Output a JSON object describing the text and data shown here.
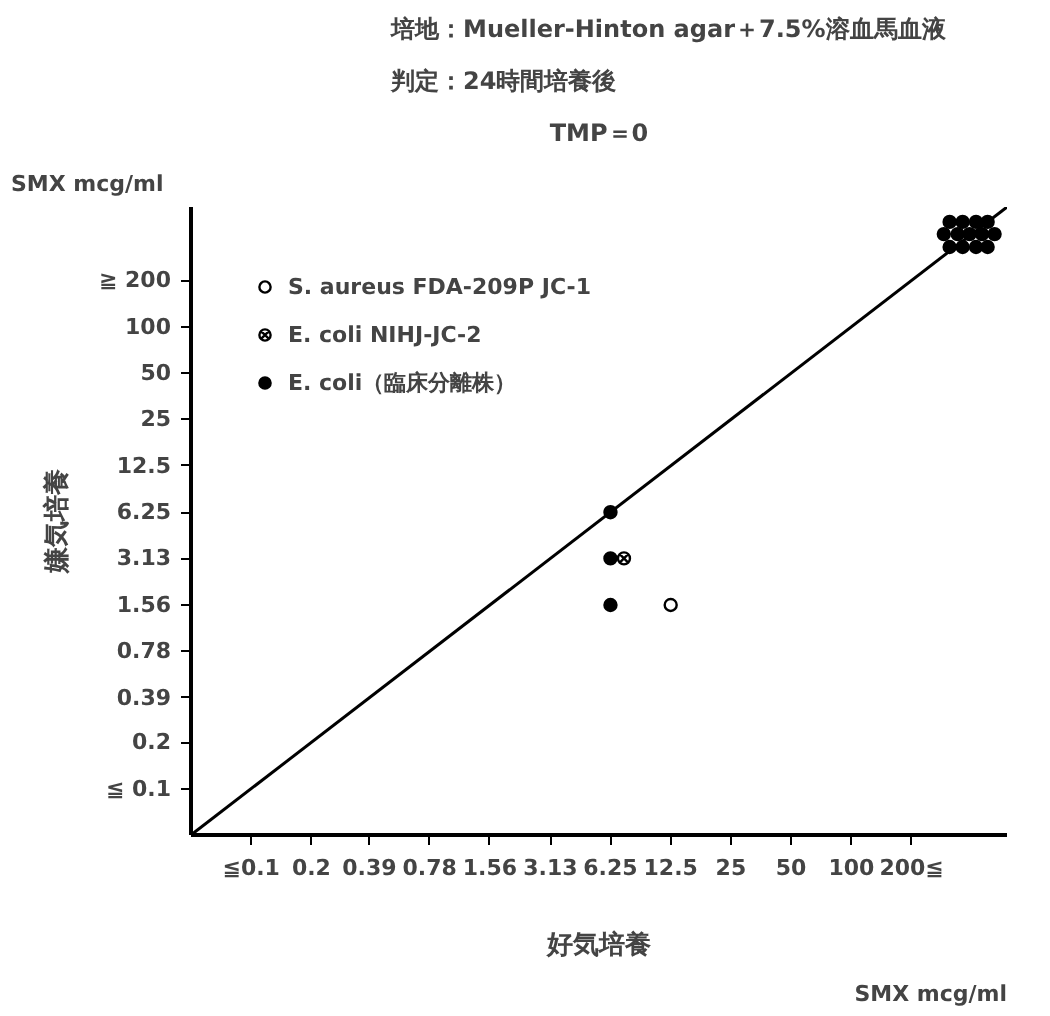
{
  "chart_data": {
    "type": "scatter",
    "title": "培地：Mueller-Hinton agar＋7.5%溶血馬血液",
    "subtitle": "判定：24時間培養後",
    "xlabel": "好気培養",
    "ylabel": "嫌気培養",
    "annotations": [
      "TMP＝0",
      "SMX mcg/ml",
      "SMX mcg/ml"
    ],
    "log": "xy",
    "grid": false,
    "legend": "top left",
    "xlim": [
      0.05,
      600
    ],
    "ylim": [
      0.05,
      600
    ],
    "xticks": [
      {
        "value": 0.1,
        "label": "≦0.1"
      },
      0.2,
      0.39,
      0.78,
      1.56,
      3.13,
      6.25,
      12.5,
      25,
      50,
      100,
      {
        "value": 200,
        "label": "200≦"
      }
    ],
    "yticks": [
      {
        "value": 0.1,
        "label": "≦ 0.1"
      },
      0.2,
      0.39,
      0.78,
      1.56,
      3.13,
      6.25,
      12.5,
      25,
      50,
      100,
      {
        "value": 200,
        "label": "≧ 200"
      }
    ],
    "series": [
      {
        "name": "S. aureus FDA-209P JC-1",
        "color": "#ffffff",
        "marker": "circle",
        "x": [
          12.5
        ],
        "values": [
          1.56
        ]
      },
      {
        "name": "E. coli NIHJ-JC-2",
        "color": "#ffffff",
        "marker": "cross",
        "x": [
          7.3
        ],
        "values": [
          3.13
        ]
      },
      {
        "name": "E. coli（臨床分離株）",
        "color": "#000000",
        "marker": "circle",
        "x": [
          6.25,
          6.25,
          6.25,
          310,
          360,
          420,
          480,
          290,
          340,
          390,
          450,
          520,
          310,
          360,
          420,
          480
        ],
        "values": [
          6.25,
          3.13,
          1.56,
          480,
          480,
          480,
          480,
          400,
          400,
          400,
          400,
          400,
          330,
          330,
          330,
          330
        ]
      },
      {
        "type": "line",
        "color": "#000000",
        "marker": "none",
        "x": [
          0.05,
          600
        ],
        "values": [
          0.05,
          600
        ]
      }
    ]
  }
}
